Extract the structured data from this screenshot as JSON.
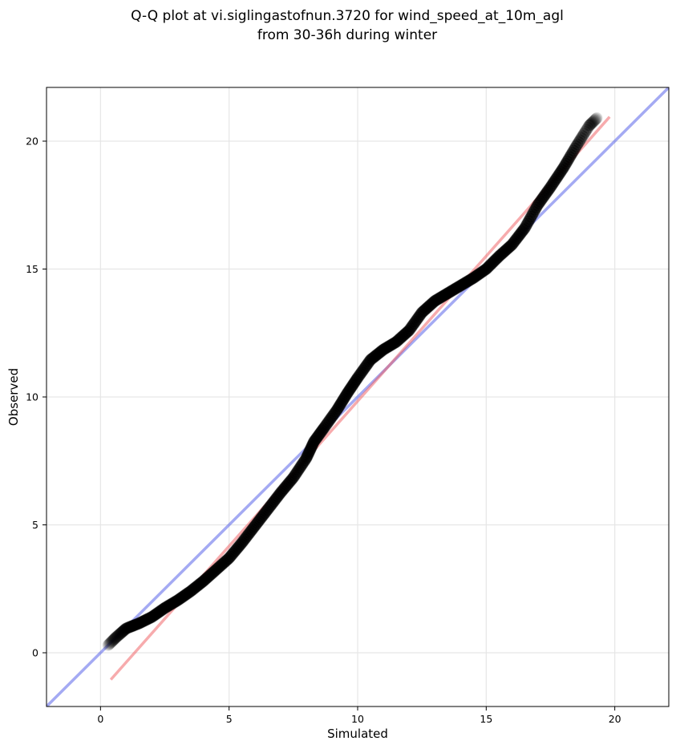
{
  "chart_data": {
    "type": "scatter",
    "title_lines": [
      "Q-Q plot at vi.siglingastofnun.3720 for wind_speed_at_10m_agl",
      "from 30-36h during winter"
    ],
    "xlabel": "Simulated",
    "ylabel": "Observed",
    "xlim": [
      -2.1,
      22.1
    ],
    "ylim": [
      -2.1,
      22.1
    ],
    "xticks": [
      0,
      5,
      10,
      15,
      20
    ],
    "yticks": [
      0,
      5,
      10,
      15,
      20
    ],
    "grid": true,
    "colors": {
      "points": "#000000",
      "identity_line": "#4a55e8",
      "fit_line": "#f0585c",
      "grid": "#e6e6e6"
    },
    "identity_line": {
      "x": [
        -2.1,
        22.1
      ],
      "y": [
        -2.1,
        22.1
      ]
    },
    "fit_line": {
      "x": [
        0.4,
        19.8
      ],
      "y": [
        -1.05,
        20.95
      ]
    },
    "quantile_curve": [
      [
        0.3,
        0.3
      ],
      [
        0.6,
        0.6
      ],
      [
        1.0,
        0.95
      ],
      [
        1.5,
        1.15
      ],
      [
        2.0,
        1.4
      ],
      [
        2.5,
        1.75
      ],
      [
        3.0,
        2.05
      ],
      [
        3.5,
        2.4
      ],
      [
        4.0,
        2.8
      ],
      [
        4.5,
        3.25
      ],
      [
        5.0,
        3.7
      ],
      [
        5.5,
        4.3
      ],
      [
        6.0,
        4.95
      ],
      [
        6.5,
        5.6
      ],
      [
        7.0,
        6.25
      ],
      [
        7.5,
        6.85
      ],
      [
        8.0,
        7.6
      ],
      [
        8.3,
        8.25
      ],
      [
        8.7,
        8.8
      ],
      [
        9.2,
        9.5
      ],
      [
        9.6,
        10.15
      ],
      [
        10.0,
        10.75
      ],
      [
        10.5,
        11.45
      ],
      [
        11.0,
        11.85
      ],
      [
        11.5,
        12.15
      ],
      [
        12.0,
        12.6
      ],
      [
        12.5,
        13.3
      ],
      [
        13.0,
        13.75
      ],
      [
        13.5,
        14.05
      ],
      [
        14.0,
        14.35
      ],
      [
        14.5,
        14.65
      ],
      [
        15.0,
        15.0
      ],
      [
        15.5,
        15.5
      ],
      [
        16.0,
        15.95
      ],
      [
        16.5,
        16.6
      ],
      [
        17.0,
        17.5
      ],
      [
        17.5,
        18.2
      ],
      [
        18.0,
        18.95
      ],
      [
        18.5,
        19.8
      ],
      [
        19.0,
        20.6
      ],
      [
        19.3,
        20.9
      ]
    ]
  }
}
